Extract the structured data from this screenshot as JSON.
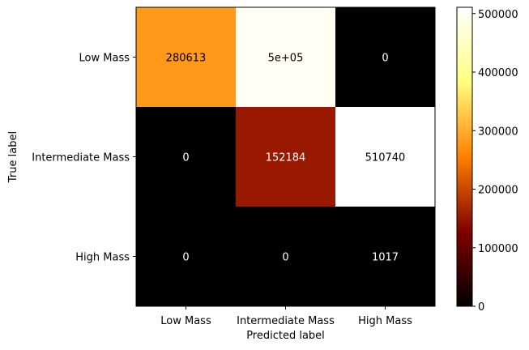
{
  "chart_data": {
    "type": "heatmap",
    "title": "",
    "xlabel": "Predicted label",
    "ylabel": "True label",
    "x_categories": [
      "Low Mass",
      "Intermediate Mass",
      "High Mass"
    ],
    "y_categories": [
      "Low Mass",
      "Intermediate Mass",
      "High Mass"
    ],
    "values": [
      [
        280613,
        500000,
        0
      ],
      [
        0,
        152184,
        510740
      ],
      [
        0,
        0,
        1017
      ]
    ],
    "cell_labels": [
      [
        "280613",
        "5e+05",
        "0"
      ],
      [
        "0",
        "152184",
        "510740"
      ],
      [
        "0",
        "0",
        "1017"
      ]
    ],
    "colormap": "afmhot",
    "colorbar": {
      "range": [
        0,
        510740
      ],
      "ticks": [
        0,
        100000,
        200000,
        300000,
        400000,
        500000
      ],
      "tick_labels": [
        "0",
        "100000",
        "200000",
        "300000",
        "400000",
        "500000"
      ]
    },
    "text_colors": {
      "dark_cell": "#ffffff",
      "light_cell": "#000000"
    }
  }
}
